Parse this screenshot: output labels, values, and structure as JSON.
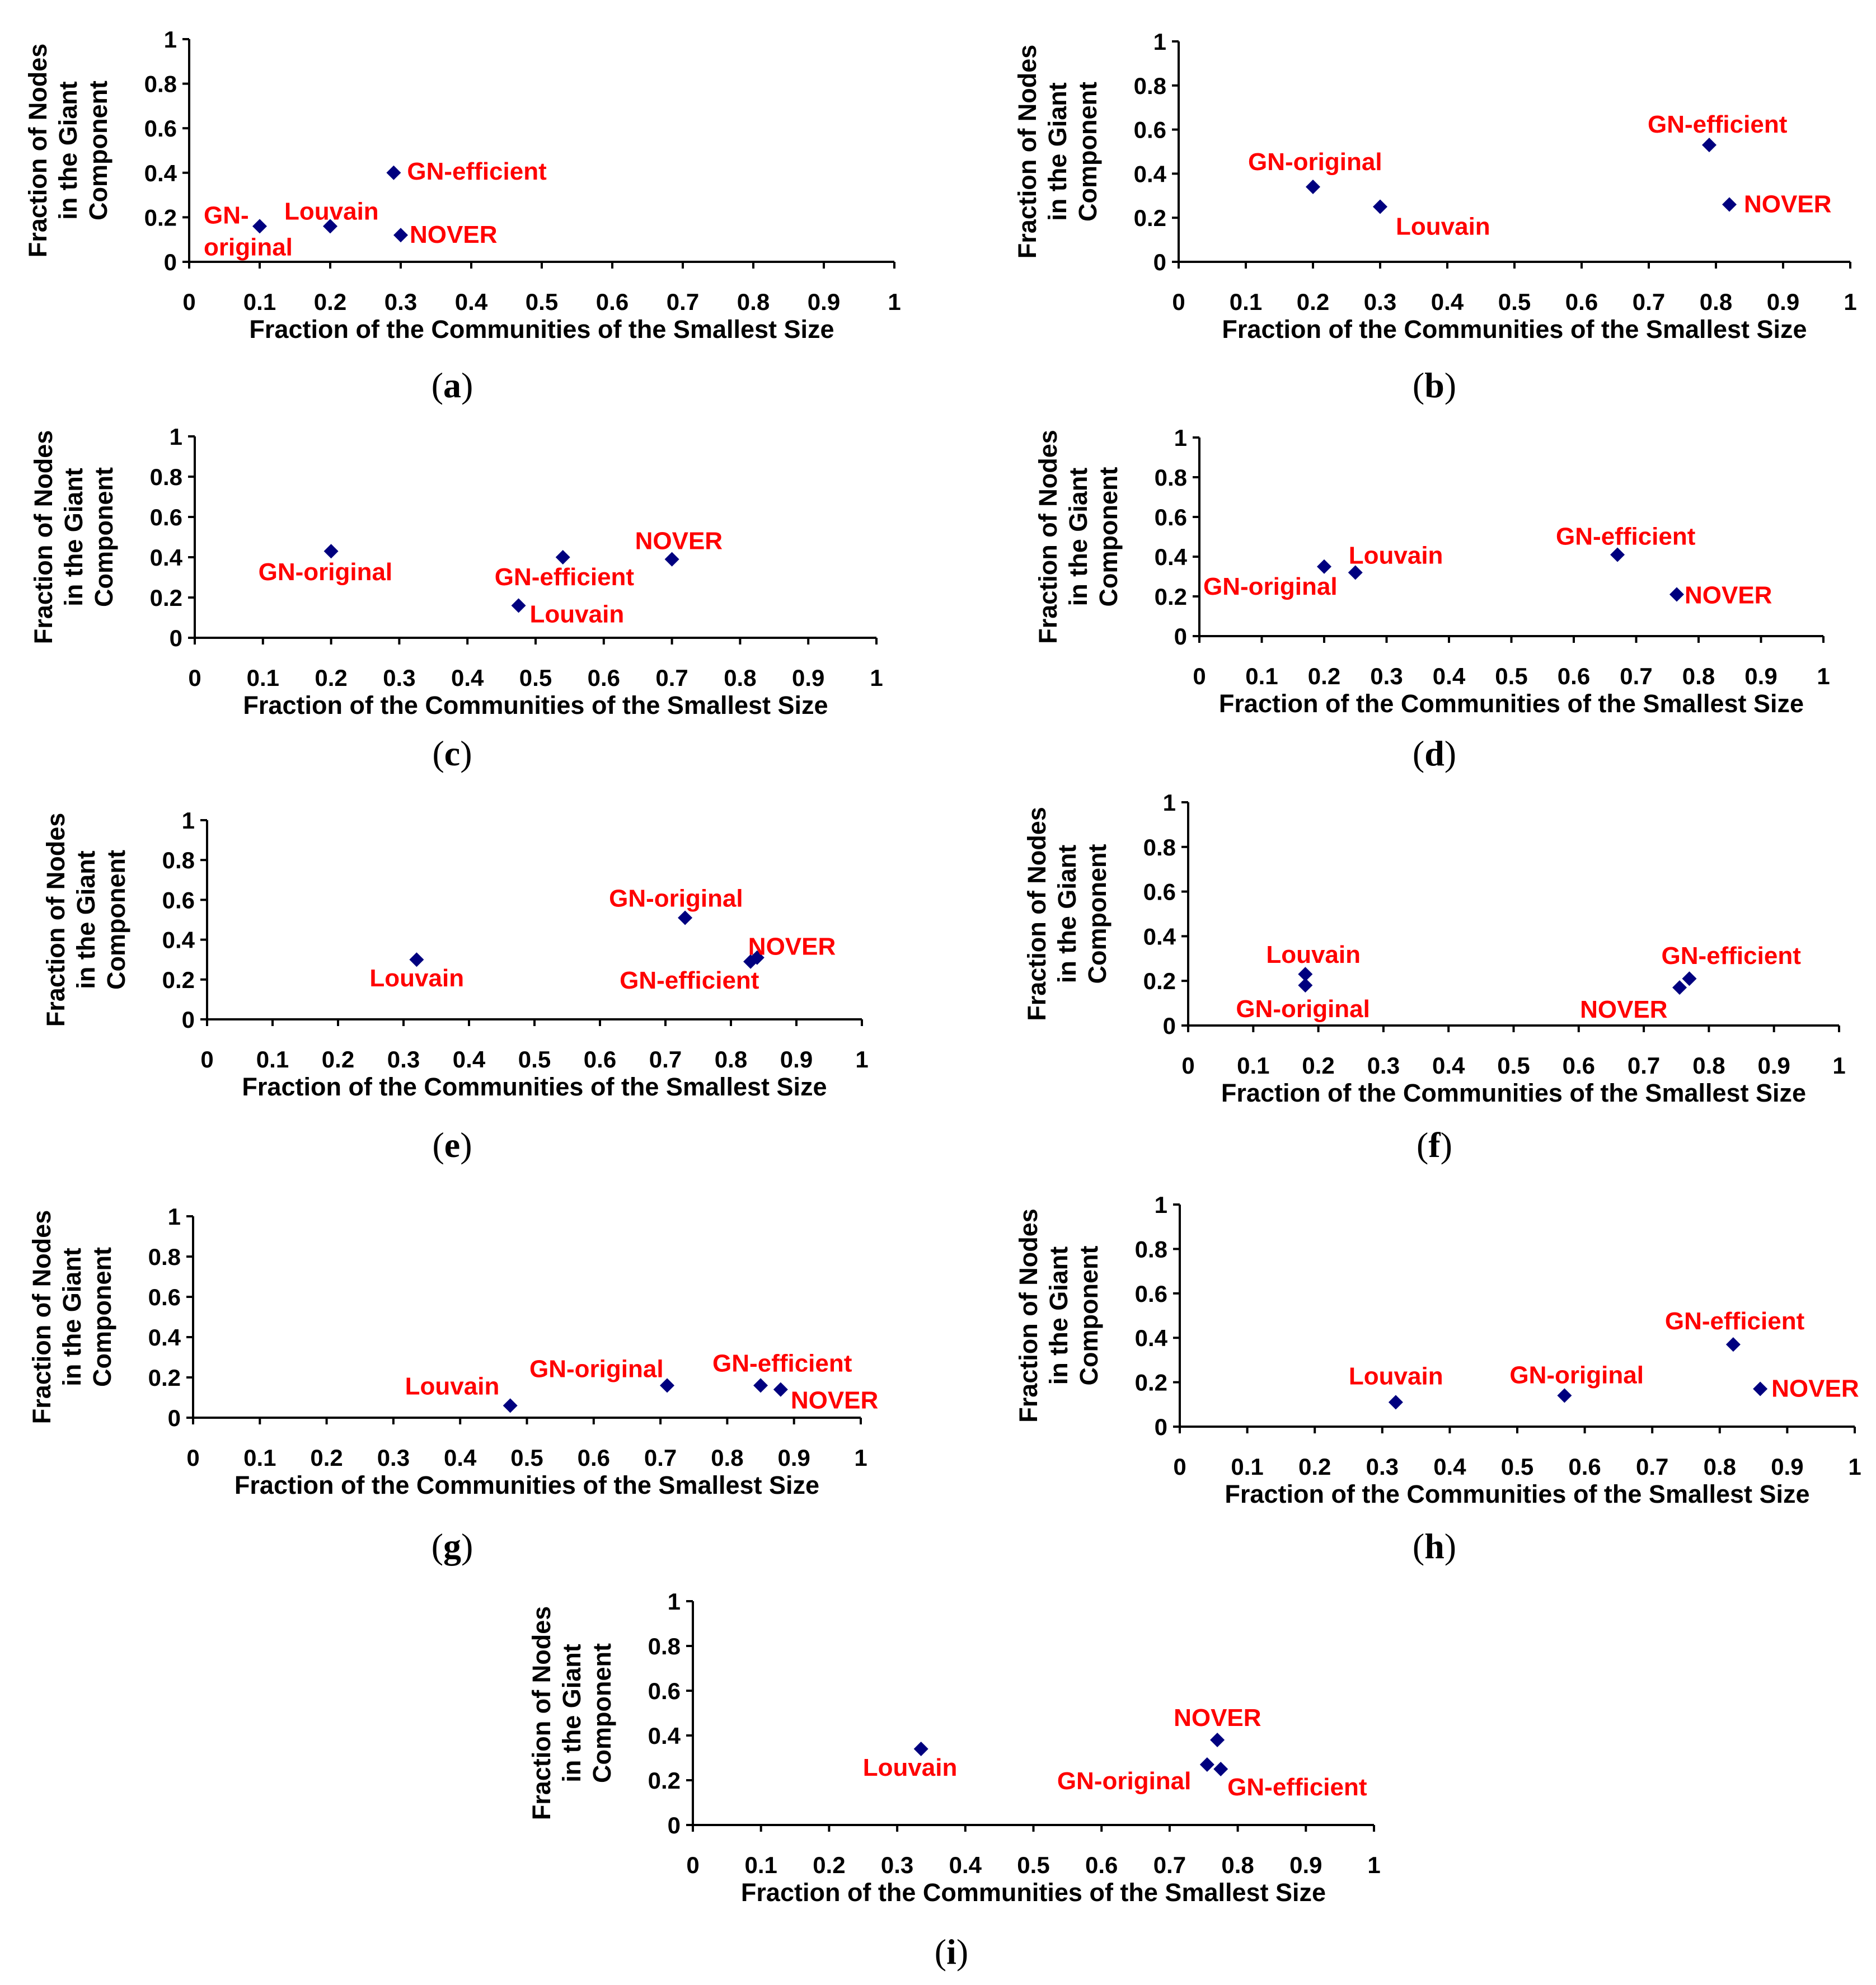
{
  "colors": {
    "marker": "#00007F",
    "label": "#FF0000",
    "axis": "#000000"
  },
  "chart_data": [
    {
      "type": "scatter",
      "panel": "a",
      "xlabel": "Fraction of the Communities of the Smallest Size",
      "ylabel_lines": [
        "Fraction of Nodes",
        "in the Giant",
        "Component"
      ],
      "xlim": [
        0,
        1
      ],
      "ylim": [
        0,
        1
      ],
      "xticks": [
        "0",
        "0.1",
        "0.2",
        "0.3",
        "0.4",
        "0.5",
        "0.6",
        "0.7",
        "0.8",
        "0.9",
        "1"
      ],
      "yticks": [
        "0",
        "0.2",
        "0.4",
        "0.6",
        "0.8",
        "1"
      ],
      "points": [
        {
          "name": "GN-original",
          "label_lines": [
            "GN-",
            "original"
          ],
          "x": 0.1,
          "y": 0.16
        },
        {
          "name": "Louvain",
          "label_lines": [
            "Louvain"
          ],
          "x": 0.2,
          "y": 0.16
        },
        {
          "name": "GN-efficient",
          "label_lines": [
            "GN-efficient"
          ],
          "x": 0.29,
          "y": 0.4
        },
        {
          "name": "NOVER",
          "label_lines": [
            "NOVER"
          ],
          "x": 0.3,
          "y": 0.12
        }
      ],
      "caption": "a"
    },
    {
      "type": "scatter",
      "panel": "b",
      "xlabel": "Fraction of the Communities of the Smallest Size",
      "ylabel_lines": [
        "Fraction of Nodes",
        "in the Giant",
        "Component"
      ],
      "xlim": [
        0,
        1
      ],
      "ylim": [
        0,
        1
      ],
      "xticks": [
        "0",
        "0.1",
        "0.2",
        "0.3",
        "0.4",
        "0.5",
        "0.6",
        "0.7",
        "0.8",
        "0.9",
        "1"
      ],
      "yticks": [
        "0",
        "0.2",
        "0.4",
        "0.6",
        "0.8",
        "1"
      ],
      "points": [
        {
          "name": "GN-original",
          "label_lines": [
            "GN-original"
          ],
          "x": 0.2,
          "y": 0.34
        },
        {
          "name": "Louvain",
          "label_lines": [
            "Louvain"
          ],
          "x": 0.3,
          "y": 0.25
        },
        {
          "name": "GN-efficient",
          "label_lines": [
            "GN-efficient"
          ],
          "x": 0.79,
          "y": 0.53
        },
        {
          "name": "NOVER",
          "label_lines": [
            "NOVER"
          ],
          "x": 0.82,
          "y": 0.26
        }
      ],
      "caption": "b"
    },
    {
      "type": "scatter",
      "panel": "c",
      "xlabel": "Fraction of the Communities of the Smallest Size",
      "ylabel_lines": [
        "Fraction of Nodes",
        "in the Giant",
        "Component"
      ],
      "xlim": [
        0,
        1
      ],
      "ylim": [
        0,
        1
      ],
      "xticks": [
        "0",
        "0.1",
        "0.2",
        "0.3",
        "0.4",
        "0.5",
        "0.6",
        "0.7",
        "0.8",
        "0.9",
        "1"
      ],
      "yticks": [
        "0",
        "0.2",
        "0.4",
        "0.6",
        "0.8",
        "1"
      ],
      "points": [
        {
          "name": "GN-original",
          "label_lines": [
            "GN-original"
          ],
          "x": 0.2,
          "y": 0.43
        },
        {
          "name": "GN-efficient",
          "label_lines": [
            "GN-efficient"
          ],
          "x": 0.54,
          "y": 0.4
        },
        {
          "name": "Louvain",
          "label_lines": [
            "Louvain"
          ],
          "x": 0.475,
          "y": 0.16
        },
        {
          "name": "NOVER",
          "label_lines": [
            "NOVER"
          ],
          "x": 0.7,
          "y": 0.39
        }
      ],
      "caption": "c"
    },
    {
      "type": "scatter",
      "panel": "d",
      "xlabel": "Fraction of the Communities of the Smallest Size",
      "ylabel_lines": [
        "Fraction of Nodes",
        "in the Giant",
        "Component"
      ],
      "xlim": [
        0,
        1
      ],
      "ylim": [
        0,
        1
      ],
      "xticks": [
        "0",
        "0.1",
        "0.2",
        "0.3",
        "0.4",
        "0.5",
        "0.6",
        "0.7",
        "0.8",
        "0.9",
        "1"
      ],
      "yticks": [
        "0",
        "0.2",
        "0.4",
        "0.6",
        "0.8",
        "1"
      ],
      "points": [
        {
          "name": "GN-original",
          "label_lines": [
            "GN-original"
          ],
          "x": 0.2,
          "y": 0.35
        },
        {
          "name": "Louvain",
          "label_lines": [
            "Louvain"
          ],
          "x": 0.25,
          "y": 0.32
        },
        {
          "name": "GN-efficient",
          "label_lines": [
            "GN-efficient"
          ],
          "x": 0.67,
          "y": 0.41
        },
        {
          "name": "NOVER",
          "label_lines": [
            "NOVER"
          ],
          "x": 0.765,
          "y": 0.21
        }
      ],
      "caption": "d"
    },
    {
      "type": "scatter",
      "panel": "e",
      "xlabel": "Fraction of the Communities of the Smallest Size",
      "ylabel_lines": [
        "Fraction of Nodes",
        "in the Giant",
        "Component"
      ],
      "xlim": [
        0,
        1
      ],
      "ylim": [
        0,
        1
      ],
      "xticks": [
        "0",
        "0.1",
        "0.2",
        "0.3",
        "0.4",
        "0.5",
        "0.6",
        "0.7",
        "0.8",
        "0.9",
        "1"
      ],
      "yticks": [
        "0",
        "0.2",
        "0.4",
        "0.6",
        "0.8",
        "1"
      ],
      "points": [
        {
          "name": "Louvain",
          "label_lines": [
            "Louvain"
          ],
          "x": 0.32,
          "y": 0.3
        },
        {
          "name": "GN-original",
          "label_lines": [
            "GN-original"
          ],
          "x": 0.73,
          "y": 0.51
        },
        {
          "name": "GN-efficient",
          "label_lines": [
            "GN-efficient"
          ],
          "x": 0.83,
          "y": 0.29
        },
        {
          "name": "NOVER",
          "label_lines": [
            "NOVER"
          ],
          "x": 0.84,
          "y": 0.31
        }
      ],
      "caption": "e"
    },
    {
      "type": "scatter",
      "panel": "f",
      "xlabel": "Fraction of the Communities of the Smallest Size",
      "ylabel_lines": [
        "Fraction of Nodes",
        "in the Giant",
        "Component"
      ],
      "xlim": [
        0,
        1
      ],
      "ylim": [
        0,
        1
      ],
      "xticks": [
        "0",
        "0.1",
        "0.2",
        "0.3",
        "0.4",
        "0.5",
        "0.6",
        "0.7",
        "0.8",
        "0.9",
        "1"
      ],
      "yticks": [
        "0",
        "0.2",
        "0.4",
        "0.6",
        "0.8",
        "1"
      ],
      "points": [
        {
          "name": "Louvain",
          "label_lines": [
            "Louvain"
          ],
          "x": 0.18,
          "y": 0.23
        },
        {
          "name": "GN-original",
          "label_lines": [
            "GN-original"
          ],
          "x": 0.18,
          "y": 0.18
        },
        {
          "name": "GN-efficient",
          "label_lines": [
            "GN-efficient"
          ],
          "x": 0.77,
          "y": 0.21
        },
        {
          "name": "NOVER",
          "label_lines": [
            "NOVER"
          ],
          "x": 0.755,
          "y": 0.17
        }
      ],
      "caption": "f"
    },
    {
      "type": "scatter",
      "panel": "g",
      "xlabel": "Fraction of the Communities of the Smallest Size",
      "ylabel_lines": [
        "Fraction of Nodes",
        "in the Giant",
        "Component"
      ],
      "xlim": [
        0,
        1
      ],
      "ylim": [
        0,
        1
      ],
      "xticks": [
        "0",
        "0.1",
        "0.2",
        "0.3",
        "0.4",
        "0.5",
        "0.6",
        "0.7",
        "0.8",
        "0.9",
        "1"
      ],
      "yticks": [
        "0",
        "0.2",
        "0.4",
        "0.6",
        "0.8",
        "1"
      ],
      "points": [
        {
          "name": "Louvain",
          "label_lines": [
            "Louvain"
          ],
          "x": 0.475,
          "y": 0.06
        },
        {
          "name": "GN-original",
          "label_lines": [
            "GN-original"
          ],
          "x": 0.71,
          "y": 0.16
        },
        {
          "name": "GN-efficient",
          "label_lines": [
            "GN-efficient"
          ],
          "x": 0.85,
          "y": 0.16
        },
        {
          "name": "NOVER",
          "label_lines": [
            "NOVER"
          ],
          "x": 0.88,
          "y": 0.14
        }
      ],
      "caption": "g"
    },
    {
      "type": "scatter",
      "panel": "h",
      "xlabel": "Fraction of the Communities of the Smallest Size",
      "ylabel_lines": [
        "Fraction of Nodes",
        "in the Giant",
        "Component"
      ],
      "xlim": [
        0,
        1
      ],
      "ylim": [
        0,
        1
      ],
      "xticks": [
        "0",
        "0.1",
        "0.2",
        "0.3",
        "0.4",
        "0.5",
        "0.6",
        "0.7",
        "0.8",
        "0.9",
        "1"
      ],
      "yticks": [
        "0",
        "0.2",
        "0.4",
        "0.6",
        "0.8",
        "1"
      ],
      "points": [
        {
          "name": "Louvain",
          "label_lines": [
            "Louvain"
          ],
          "x": 0.32,
          "y": 0.11
        },
        {
          "name": "GN-original",
          "label_lines": [
            "GN-original"
          ],
          "x": 0.57,
          "y": 0.14
        },
        {
          "name": "GN-efficient",
          "label_lines": [
            "GN-efficient"
          ],
          "x": 0.82,
          "y": 0.37
        },
        {
          "name": "NOVER",
          "label_lines": [
            "NOVER"
          ],
          "x": 0.86,
          "y": 0.17
        }
      ],
      "caption": "h"
    },
    {
      "type": "scatter",
      "panel": "i",
      "xlabel": "Fraction of the Communities of the Smallest Size",
      "ylabel_lines": [
        "Fraction of Nodes",
        "in the Giant",
        "Component"
      ],
      "xlim": [
        0,
        1
      ],
      "ylim": [
        0,
        1
      ],
      "xticks": [
        "0",
        "0.1",
        "0.2",
        "0.3",
        "0.4",
        "0.5",
        "0.6",
        "0.7",
        "0.8",
        "0.9",
        "1"
      ],
      "yticks": [
        "0",
        "0.2",
        "0.4",
        "0.6",
        "0.8",
        "1"
      ],
      "points": [
        {
          "name": "Louvain",
          "label_lines": [
            "Louvain"
          ],
          "x": 0.335,
          "y": 0.34
        },
        {
          "name": "NOVER",
          "label_lines": [
            "NOVER"
          ],
          "x": 0.77,
          "y": 0.38
        },
        {
          "name": "GN-original",
          "label_lines": [
            "GN-original"
          ],
          "x": 0.755,
          "y": 0.27
        },
        {
          "name": "GN-efficient",
          "label_lines": [
            "GN-efficient"
          ],
          "x": 0.775,
          "y": 0.25
        }
      ],
      "caption": "i"
    }
  ]
}
